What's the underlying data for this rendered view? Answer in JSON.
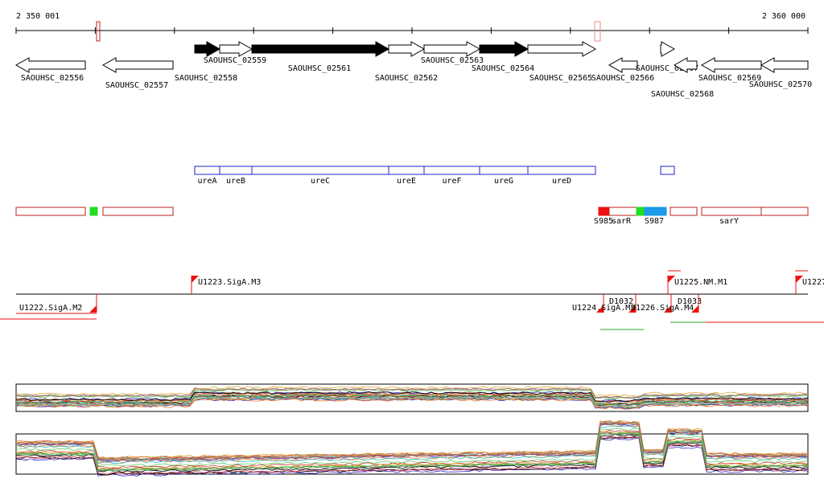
{
  "ruler": {
    "start": "2 350 001",
    "end": "2 360 000"
  },
  "genes": [
    "SAOUHSC_02556",
    "SAOUHSC_02557",
    "SAOUHSC_02558",
    "SAOUHSC_02559",
    "SAOUHSC_02561",
    "SAOUHSC_02562",
    "SAOUHSC_02563",
    "SAOUHSC_02564",
    "SAOUHSC_02565",
    "SAOUHSC_02566",
    "SAOUHSC_02567",
    "SAOUHSC_02568",
    "SAOUHSC_02569",
    "SAOUHSC_02570"
  ],
  "operon_genes": [
    "ureA",
    "ureB",
    "ureC",
    "ureE",
    "ureF",
    "ureG",
    "ureD"
  ],
  "rna_features": [
    "S985",
    "sarR",
    "S987",
    "sarY"
  ],
  "promoters": [
    "U1223.SigA.M3",
    "U1225.NM.M1",
    "U1227",
    "U1222.SigA.M2",
    "D1032",
    "D1033",
    "U1224.SigA.M3",
    "U1226.SigA.M4"
  ]
}
